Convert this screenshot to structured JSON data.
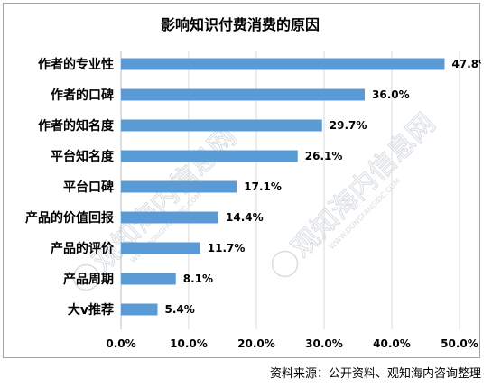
{
  "chart_data": {
    "type": "bar",
    "orientation": "horizontal",
    "title": "影响知识付费消费的原因",
    "categories": [
      "作者的专业性",
      "作者的口碑",
      "作者的知名度",
      "平台知名度",
      "平台口碑",
      "产品的价值回报",
      "产品的评价",
      "产品周期",
      "大v推荐"
    ],
    "values": [
      47.8,
      36.0,
      29.7,
      26.1,
      17.1,
      14.4,
      11.7,
      8.1,
      5.4
    ],
    "value_labels": [
      "47.8%",
      "36.0%",
      "29.7%",
      "26.1%",
      "17.1%",
      "14.4%",
      "11.7%",
      "8.1%",
      "5.4%"
    ],
    "xlim": [
      0,
      50
    ],
    "xticks": [
      0,
      10,
      20,
      30,
      40,
      50
    ],
    "xtick_labels": [
      "0.0%",
      "10.0%",
      "20.0%",
      "30.0%",
      "40.0%",
      "50.0%"
    ],
    "xlabel": "",
    "ylabel": "",
    "grid": true,
    "bar_color": "#5b9bd5",
    "grid_color": "#d9d9d9"
  },
  "source": "资料来源：公开资料、观知海内咨询整理",
  "watermarks": [
    {
      "text": "观知海内信息网",
      "sub": "WWW.DONGFANGIDC.COM"
    },
    {
      "text": "观知海内信息网",
      "sub": "WWW.DONGFANGIDC.COM"
    }
  ]
}
